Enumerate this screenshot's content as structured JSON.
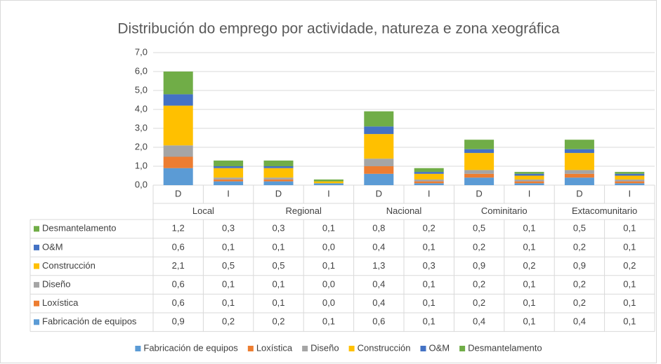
{
  "chart_data": {
    "type": "stacked_bar",
    "title": "Distribución do emprego por actividade, natureza e zona xeográfica",
    "categories": [
      "D",
      "I",
      "D",
      "I",
      "D",
      "I",
      "D",
      "I",
      "D",
      "I"
    ],
    "groups": [
      "Local",
      "Regional",
      "Nacional",
      "Cominitario",
      "Extacomunitario"
    ],
    "ylim": [
      0,
      7
    ],
    "yticks": [
      {
        "value": 0,
        "label": "0,0"
      },
      {
        "value": 1,
        "label": "1,0"
      },
      {
        "value": 2,
        "label": "2,0"
      },
      {
        "value": 3,
        "label": "3,0"
      },
      {
        "value": 4,
        "label": "4,0"
      },
      {
        "value": 5,
        "label": "5,0"
      },
      {
        "value": 6,
        "label": "6,0"
      },
      {
        "value": 7,
        "label": "7,0"
      }
    ],
    "grid": true,
    "series": [
      {
        "name": "Fabricación de equipos",
        "color": "#5b9bd5",
        "values": [
          0.9,
          0.2,
          0.2,
          0.1,
          0.6,
          0.1,
          0.4,
          0.1,
          0.4,
          0.1
        ],
        "value_labels": [
          "0,9",
          "0,2",
          "0,2",
          "0,1",
          "0,6",
          "0,1",
          "0,4",
          "0,1",
          "0,4",
          "0,1"
        ]
      },
      {
        "name": "Loxística",
        "color": "#ed7d31",
        "values": [
          0.6,
          0.1,
          0.1,
          0.0,
          0.4,
          0.1,
          0.2,
          0.1,
          0.2,
          0.1
        ],
        "value_labels": [
          "0,6",
          "0,1",
          "0,1",
          "0,0",
          "0,4",
          "0,1",
          "0,2",
          "0,1",
          "0,2",
          "0,1"
        ]
      },
      {
        "name": "Diseño",
        "color": "#a5a5a5",
        "values": [
          0.6,
          0.1,
          0.1,
          0.0,
          0.4,
          0.1,
          0.2,
          0.1,
          0.2,
          0.1
        ],
        "value_labels": [
          "0,6",
          "0,1",
          "0,1",
          "0,0",
          "0,4",
          "0,1",
          "0,2",
          "0,1",
          "0,2",
          "0,1"
        ]
      },
      {
        "name": "Construcción",
        "color": "#ffc000",
        "values": [
          2.1,
          0.5,
          0.5,
          0.1,
          1.3,
          0.3,
          0.9,
          0.2,
          0.9,
          0.2
        ],
        "value_labels": [
          "2,1",
          "0,5",
          "0,5",
          "0,1",
          "1,3",
          "0,3",
          "0,9",
          "0,2",
          "0,9",
          "0,2"
        ]
      },
      {
        "name": "O&M",
        "color": "#4472c4",
        "values": [
          0.6,
          0.1,
          0.1,
          0.0,
          0.4,
          0.1,
          0.2,
          0.1,
          0.2,
          0.1
        ],
        "value_labels": [
          "0,6",
          "0,1",
          "0,1",
          "0,0",
          "0,4",
          "0,1",
          "0,2",
          "0,1",
          "0,2",
          "0,1"
        ]
      },
      {
        "name": "Desmantelamento",
        "color": "#70ad47",
        "values": [
          1.2,
          0.3,
          0.3,
          0.1,
          0.8,
          0.2,
          0.5,
          0.1,
          0.5,
          0.1
        ],
        "value_labels": [
          "1,2",
          "0,3",
          "0,3",
          "0,1",
          "0,8",
          "0,2",
          "0,5",
          "0,1",
          "0,5",
          "0,1"
        ]
      }
    ]
  }
}
